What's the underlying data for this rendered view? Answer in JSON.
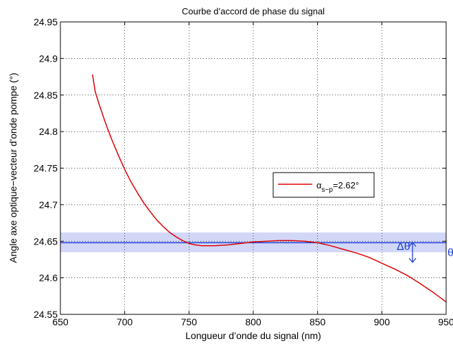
{
  "chart_data": {
    "type": "line",
    "title": "Courbe d’accord de phase du signal",
    "xlabel": "Longueur d’onde du signal (nm)",
    "ylabel": "Angle axe optique−vecteur d’onde pompe (°)",
    "xlim": [
      650,
      950
    ],
    "ylim": [
      24.55,
      24.95
    ],
    "xticks": [
      650,
      700,
      750,
      800,
      850,
      900,
      950
    ],
    "xtick_labels": [
      "650",
      "700",
      "750",
      "800",
      "850",
      "900",
      "950"
    ],
    "yticks": [
      24.55,
      24.6,
      24.65,
      24.7,
      24.75,
      24.8,
      24.85,
      24.9,
      24.95
    ],
    "ytick_labels": [
      "24.55",
      "24.6",
      "24.65",
      "24.7",
      "24.75",
      "24.8",
      "24.85",
      "24.9",
      "24.95"
    ],
    "grid": true,
    "legend_position": "center-right",
    "series": [
      {
        "name": "α",
        "legend_subscript": "s−p",
        "legend_suffix": "=2.62°",
        "color": "#dd0000",
        "x": [
          675,
          677,
          680,
          685,
          690,
          695,
          700,
          705,
          710,
          715,
          720,
          725,
          730,
          735,
          740,
          745,
          750,
          755,
          760,
          765,
          770,
          780,
          790,
          800,
          810,
          820,
          830,
          840,
          850,
          855,
          860,
          870,
          880,
          890,
          900,
          910,
          920,
          930,
          940,
          950
        ],
        "y": [
          24.878,
          24.855,
          24.838,
          24.812,
          24.789,
          24.768,
          24.748,
          24.731,
          24.716,
          24.702,
          24.69,
          24.679,
          24.67,
          24.662,
          24.656,
          24.651,
          24.647,
          24.645,
          24.644,
          24.644,
          24.644,
          24.645,
          24.647,
          24.649,
          24.65,
          24.651,
          24.651,
          24.65,
          24.648,
          24.646,
          24.644,
          24.639,
          24.634,
          24.628,
          24.62,
          24.612,
          24.603,
          24.592,
          24.58,
          24.567
        ]
      }
    ],
    "reference_line": {
      "y": 24.648,
      "label": "θ",
      "color": "#1f3fd8"
    },
    "tolerance_band": {
      "y_min": 24.635,
      "y_max": 24.662,
      "label": "Δθ",
      "color": "#cdd3f7"
    }
  }
}
